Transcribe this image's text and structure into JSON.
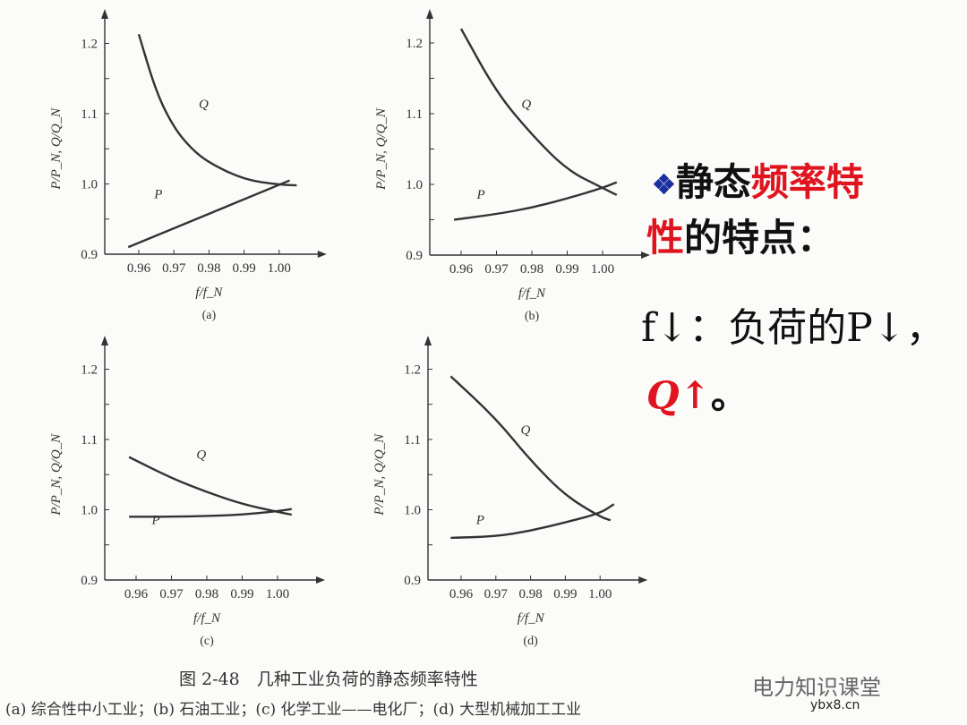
{
  "chart_data": [
    {
      "type": "line",
      "panel": "(a)",
      "xlabel": "f/f_N",
      "ylabel": "P/P_N, Q/Q_N",
      "xlim": [
        0.95,
        1.006
      ],
      "ylim": [
        0.9,
        1.25
      ],
      "xticks": [
        "0.96",
        "0.97",
        "0.98",
        "0.99",
        "1.00"
      ],
      "yticks": [
        "0.9",
        "1.0",
        "1.1",
        "1.2"
      ],
      "series": [
        {
          "name": "Q",
          "x": [
            0.96,
            0.965,
            0.97,
            0.975,
            0.98,
            0.99,
            1.0,
            1.005
          ],
          "y": [
            1.213,
            1.13,
            1.08,
            1.05,
            1.03,
            1.006,
            0.999,
            0.998
          ]
        },
        {
          "name": "P",
          "x": [
            0.957,
            1.003
          ],
          "y": [
            0.91,
            1.005
          ]
        }
      ]
    },
    {
      "type": "line",
      "panel": "(b)",
      "xlabel": "f/f_N",
      "ylabel": "P/P_N, Q/Q_N",
      "xlim": [
        0.95,
        1.006
      ],
      "ylim": [
        0.9,
        1.25
      ],
      "xticks": [
        "0.96",
        "0.97",
        "0.98",
        "0.99",
        "1.00"
      ],
      "yticks": [
        "0.9",
        "1.0",
        "1.1",
        "1.2"
      ],
      "series": [
        {
          "name": "Q",
          "x": [
            0.96,
            0.97,
            0.98,
            0.99,
            1.0,
            1.004
          ],
          "y": [
            1.22,
            1.13,
            1.07,
            1.02,
            0.995,
            0.985
          ]
        },
        {
          "name": "P",
          "x": [
            0.958,
            0.97,
            0.98,
            0.99,
            1.0,
            1.004
          ],
          "y": [
            0.95,
            0.958,
            0.967,
            0.98,
            0.995,
            1.003
          ]
        }
      ]
    },
    {
      "type": "line",
      "panel": "(c)",
      "xlabel": "f/f_N",
      "ylabel": "P/P_N, Q/Q_N",
      "xlim": [
        0.95,
        1.006
      ],
      "ylim": [
        0.9,
        1.25
      ],
      "xticks": [
        "0.96",
        "0.97",
        "0.98",
        "0.99",
        "1.00"
      ],
      "yticks": [
        "0.9",
        "1.0",
        "1.1",
        "1.2"
      ],
      "series": [
        {
          "name": "Q",
          "x": [
            0.958,
            0.97,
            0.98,
            0.99,
            1.0,
            1.004
          ],
          "y": [
            1.075,
            1.045,
            1.025,
            1.008,
            0.997,
            0.993
          ]
        },
        {
          "name": "P",
          "x": [
            0.958,
            0.97,
            0.98,
            0.99,
            1.0,
            1.004
          ],
          "y": [
            0.99,
            0.99,
            0.991,
            0.993,
            0.998,
            1.001
          ]
        }
      ]
    },
    {
      "type": "line",
      "panel": "(d)",
      "xlabel": "f/f_N",
      "ylabel": "P/P_N, Q/Q_N",
      "xlim": [
        0.95,
        1.006
      ],
      "ylim": [
        0.9,
        1.25
      ],
      "xticks": [
        "0.96",
        "0.97",
        "0.98",
        "0.99",
        "1.00"
      ],
      "yticks": [
        "0.9",
        "1.0",
        "1.1",
        "1.2"
      ],
      "series": [
        {
          "name": "Q",
          "x": [
            0.957,
            0.97,
            0.98,
            0.99,
            1.0,
            1.003
          ],
          "y": [
            1.19,
            1.13,
            1.07,
            1.02,
            0.99,
            0.985
          ]
        },
        {
          "name": "P",
          "x": [
            0.957,
            0.97,
            0.98,
            0.99,
            1.0,
            1.004
          ],
          "y": [
            0.96,
            0.962,
            0.97,
            0.982,
            0.995,
            1.008
          ]
        }
      ]
    }
  ],
  "caption": {
    "title": "图 2-48　几种工业负荷的静态频率特性",
    "legend": "(a) 综合性中小工业；(b) 石油工业；(c) 化学工业——电化厂；(d) 大型机械加工工业"
  },
  "note": {
    "bullet": "❖",
    "line1_a": "静态",
    "line1_b": "频率特",
    "line2_a": "性",
    "line2_b": "的特点：",
    "line3": "f↓：负荷的P↓，",
    "line4_a": "Q↑",
    "line4_b": "。"
  },
  "watermark": {
    "name": "电力知识课堂",
    "site": "ybx8.cn"
  },
  "colors": {
    "curve": "#333333",
    "highlight": "#e0141e",
    "bullet": "#1a2fa0"
  }
}
